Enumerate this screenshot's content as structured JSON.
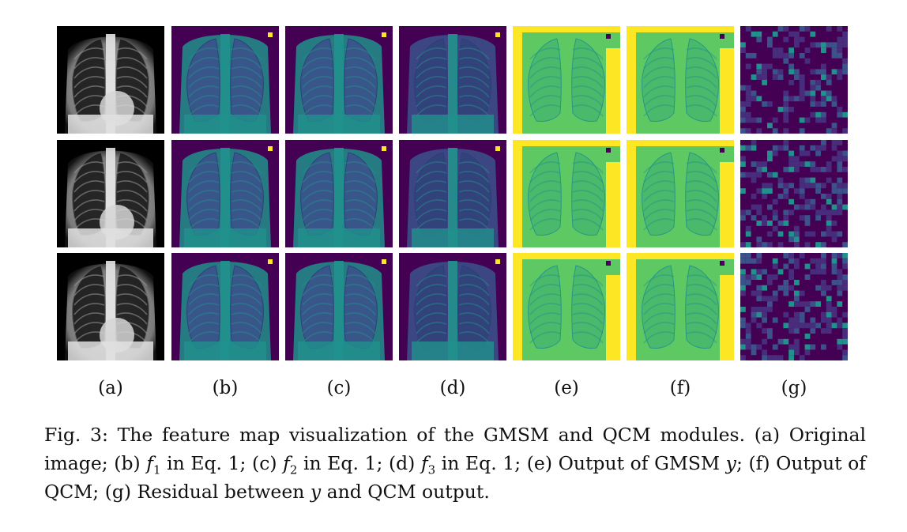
{
  "figure": {
    "columns": [
      {
        "id": "a",
        "label": "(a)",
        "panel_kind": "xray"
      },
      {
        "id": "b",
        "label": "(b)",
        "panel_kind": "f1"
      },
      {
        "id": "c",
        "label": "(c)",
        "panel_kind": "f2"
      },
      {
        "id": "d",
        "label": "(d)",
        "panel_kind": "f3"
      },
      {
        "id": "e",
        "label": "(e)",
        "panel_kind": "gmsm-output"
      },
      {
        "id": "f",
        "label": "(f)",
        "panel_kind": "qcm-output"
      },
      {
        "id": "g",
        "label": "(g)",
        "panel_kind": "residual"
      }
    ],
    "rows": 3,
    "colors": {
      "viridis_dark": "#440154",
      "viridis_blue": "#3b528b",
      "viridis_teal": "#21918c",
      "viridis_green": "#5ec962",
      "viridis_yellow": "#fde725",
      "xray_black": "#000000",
      "xray_white": "#ffffff"
    }
  },
  "caption": {
    "prefix": "Fig. 3:",
    "t1": " The feature map visualization of the GMSM and QCM modules. (a) Original image; (b) ",
    "f1": "f",
    "s1": "1",
    "t2": " in Eq. 1; (c) ",
    "f2": "f",
    "s2": "2",
    "t3": " in Eq. 1; (d) ",
    "f3": "f",
    "s3": "3",
    "t4": " in Eq. 1; (e) Output of GMSM ",
    "y1": "y",
    "t5": "; (f) Output of QCM; (g) Residual between ",
    "y2": "y",
    "t6": " and QCM output."
  }
}
